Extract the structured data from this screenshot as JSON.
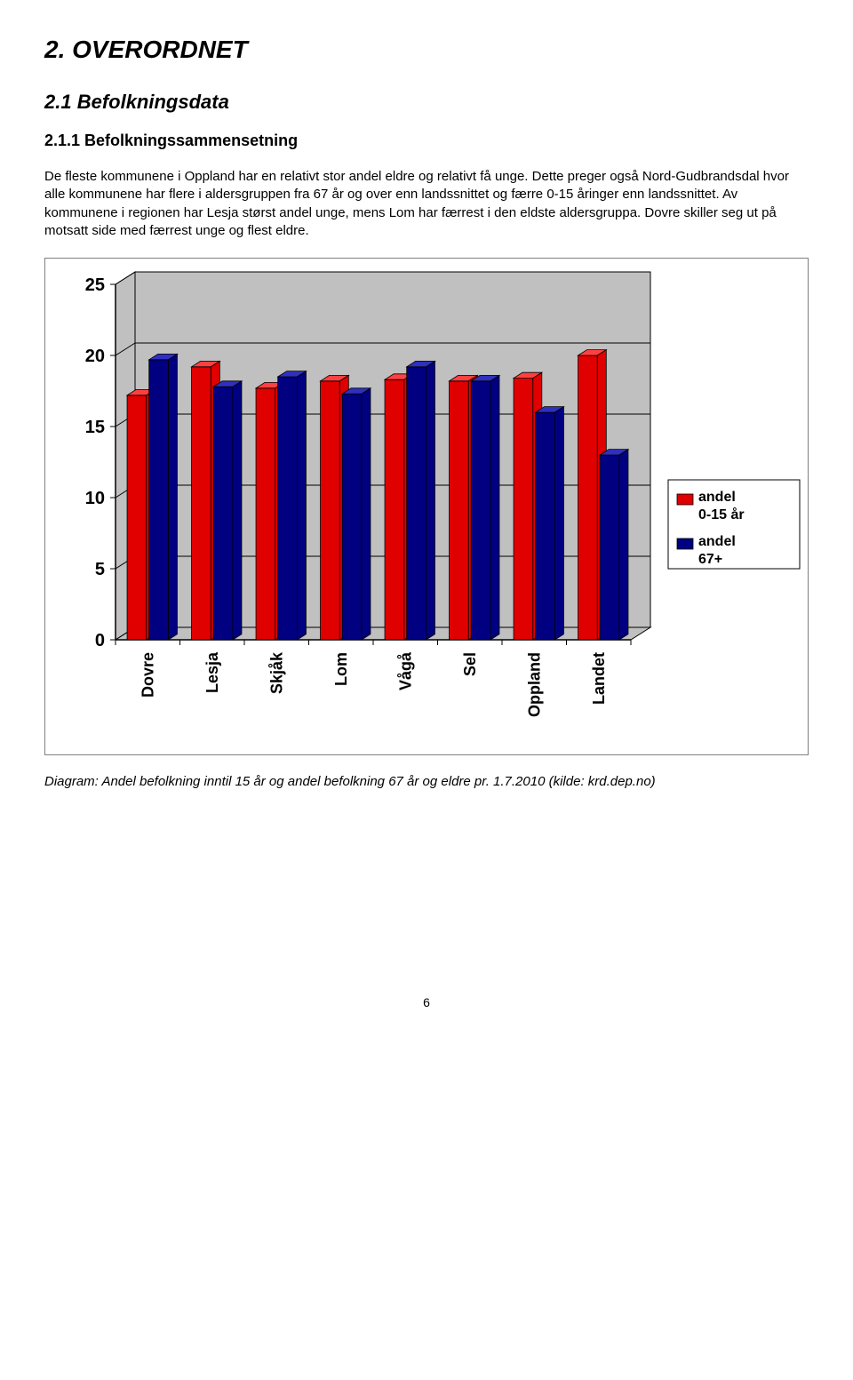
{
  "headings": {
    "h1": "2. OVERORDNET",
    "h2": "2.1 Befolkningsdata",
    "h3": "2.1.1 Befolkningssammensetning"
  },
  "paragraph": "De fleste kommunene i Oppland har en relativt stor andel eldre og relativt få unge. Dette preger også Nord-Gudbrandsdal hvor alle kommunene har flere i aldersgruppen fra 67 år og over enn landssnittet og færre 0-15 åringer enn landssnittet. Av kommunene i regionen har Lesja størst andel unge, mens Lom har færrest i den eldste aldersgruppa. Dovre skiller seg ut på motsatt side med færrest unge og flest eldre.",
  "chart": {
    "type": "bar",
    "categories": [
      "Dovre",
      "Lesja",
      "Skjåk",
      "Lom",
      "Vågå",
      "Sel",
      "Oppland",
      "Landet"
    ],
    "series": [
      {
        "name": "andel 0-15 år",
        "color_top": "#ff4040",
        "color_front": "#e00000",
        "values": [
          17.2,
          19.2,
          17.7,
          18.2,
          18.3,
          18.2,
          18.4,
          20.0
        ]
      },
      {
        "name": "andel 67+",
        "color_top": "#3030c0",
        "color_front": "#000080",
        "values": [
          19.7,
          17.8,
          18.5,
          17.3,
          19.2,
          18.2,
          16.0,
          13.0
        ]
      }
    ],
    "y_axis": {
      "min": 0,
      "max": 25,
      "step": 5
    },
    "legend_items": [
      {
        "swatch": "#e00000",
        "label": "andel 0-15 år"
      },
      {
        "swatch": "#000080",
        "label": "andel 67+"
      }
    ],
    "plot": {
      "bg_floor": "#c0c0c0",
      "bg_wall": "#c0c0c0",
      "grid_color": "#000000",
      "axis_label_fontsize": 20,
      "cat_label_fontsize": 18,
      "legend_fontsize": 16
    }
  },
  "caption": "Diagram: Andel befolkning inntil 15 år og andel befolkning 67 år og eldre pr. 1.7.2010 (kilde: krd.dep.no)",
  "page_number": "6"
}
